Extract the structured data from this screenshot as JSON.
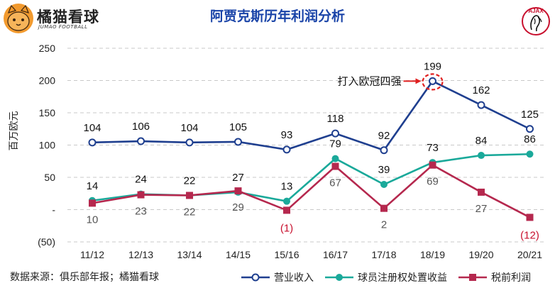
{
  "brand": {
    "name": "橘猫看球",
    "sub": "JUMAO FOOTBALL",
    "logo_icon": "cat-face-icon"
  },
  "club_logo": {
    "icon": "ajax-crest-icon",
    "text": "AJAX"
  },
  "source": "数据来源：俱乐部年报；橘猫看球",
  "chart_data": {
    "type": "line",
    "title": "阿贾克斯历年利润分析",
    "ylabel": "百万欧元",
    "xlabel": "",
    "ylim": [
      -50,
      250
    ],
    "yticks": [
      250,
      200,
      150,
      100,
      50,
      0,
      -50
    ],
    "ytick_labels": [
      "250",
      "200",
      "150",
      "100",
      "50",
      "-",
      "(50)"
    ],
    "grid": true,
    "legend_position": "bottom-right",
    "categories": [
      "11/12",
      "12/13",
      "13/14",
      "14/15",
      "15/16",
      "16/17",
      "17/18",
      "18/19",
      "19/20",
      "20/21"
    ],
    "series": [
      {
        "name": "营业收入",
        "color": "#1f3f8f",
        "marker": "circle-open",
        "values": [
          104,
          106,
          104,
          105,
          93,
          118,
          92,
          199,
          162,
          125
        ],
        "labels": [
          "104",
          "106",
          "104",
          "105",
          "93",
          "118",
          "92",
          "199",
          "162",
          "125"
        ]
      },
      {
        "name": "球员注册权处置收益",
        "color": "#1aa99a",
        "marker": "circle",
        "values": [
          14,
          24,
          22,
          27,
          13,
          79,
          39,
          73,
          84,
          86
        ],
        "labels": [
          "14",
          "24",
          "22",
          "27",
          "13",
          "79",
          "39",
          "73",
          "84",
          "86"
        ]
      },
      {
        "name": "税前利润",
        "color": "#b5284e",
        "marker": "square",
        "values": [
          10,
          23,
          22,
          29,
          -1,
          67,
          2,
          69,
          27,
          -12
        ],
        "labels": [
          "10",
          "23",
          "22",
          "29",
          "(1)",
          "67",
          "2",
          "69",
          "27",
          "(12)"
        ]
      }
    ],
    "annotation": {
      "text": "打入欧冠四强",
      "target_category": "18/19",
      "color": "#e02020"
    }
  }
}
